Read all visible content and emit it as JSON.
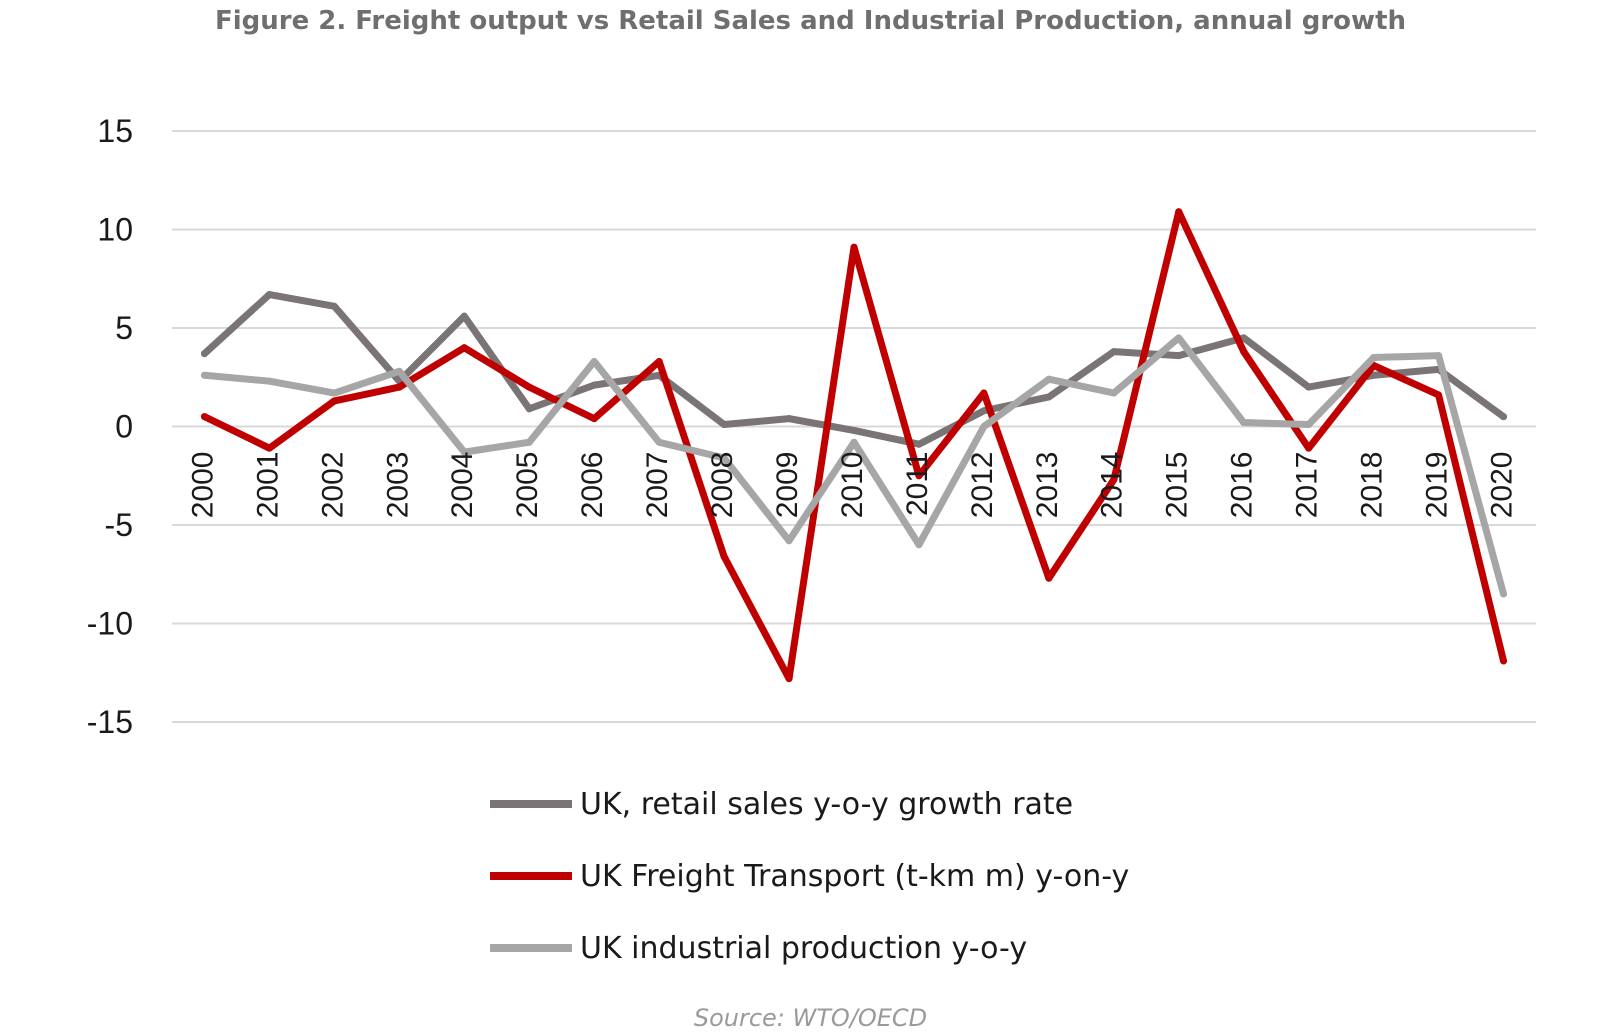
{
  "title": "Figure 2. Freight output vs Retail Sales and Industrial Production, annual growth",
  "source": "Source: WTO/OECD",
  "chart_data": {
    "type": "line",
    "title": "Figure 2. Freight output vs Retail Sales and Industrial Production, annual growth",
    "xlabel": "",
    "ylabel": "",
    "ylim": [
      -15,
      15
    ],
    "yticks": [
      15,
      10,
      5,
      0,
      -5,
      -10,
      -15
    ],
    "grid": true,
    "legend_position": "bottom",
    "categories": [
      "2000",
      "2001",
      "2002",
      "2003",
      "2004",
      "2005",
      "2006",
      "2007",
      "2008",
      "2009",
      "2010",
      "2011",
      "2012",
      "2013",
      "2014",
      "2015",
      "2016",
      "2017",
      "2018",
      "2019",
      "2020"
    ],
    "series": [
      {
        "name": "UK, retail sales y-o-y growth rate",
        "color": "#7a7474",
        "values": [
          3.7,
          6.7,
          6.1,
          2.3,
          5.6,
          0.9,
          2.1,
          2.6,
          0.1,
          0.4,
          -0.2,
          -0.9,
          0.8,
          1.5,
          3.8,
          3.6,
          4.5,
          2.0,
          2.6,
          2.9,
          0.5
        ]
      },
      {
        "name": "UK Freight Transport (t-km m) y-on-y",
        "color": "#c00000",
        "values": [
          0.5,
          -1.1,
          1.3,
          2.0,
          4.0,
          2.0,
          0.4,
          3.3,
          -6.6,
          -12.8,
          9.1,
          -2.5,
          1.7,
          -7.7,
          -2.7,
          10.9,
          3.8,
          -1.1,
          3.1,
          1.6,
          -11.9
        ]
      },
      {
        "name": "UK industrial production y-o-y",
        "color": "#a6a6a6",
        "values": [
          2.6,
          2.3,
          1.7,
          2.8,
          -1.3,
          -0.8,
          3.3,
          -0.8,
          -1.6,
          -5.8,
          -0.8,
          -6.0,
          0.0,
          2.4,
          1.7,
          4.5,
          0.2,
          0.1,
          3.5,
          3.6,
          -8.5
        ]
      }
    ]
  }
}
